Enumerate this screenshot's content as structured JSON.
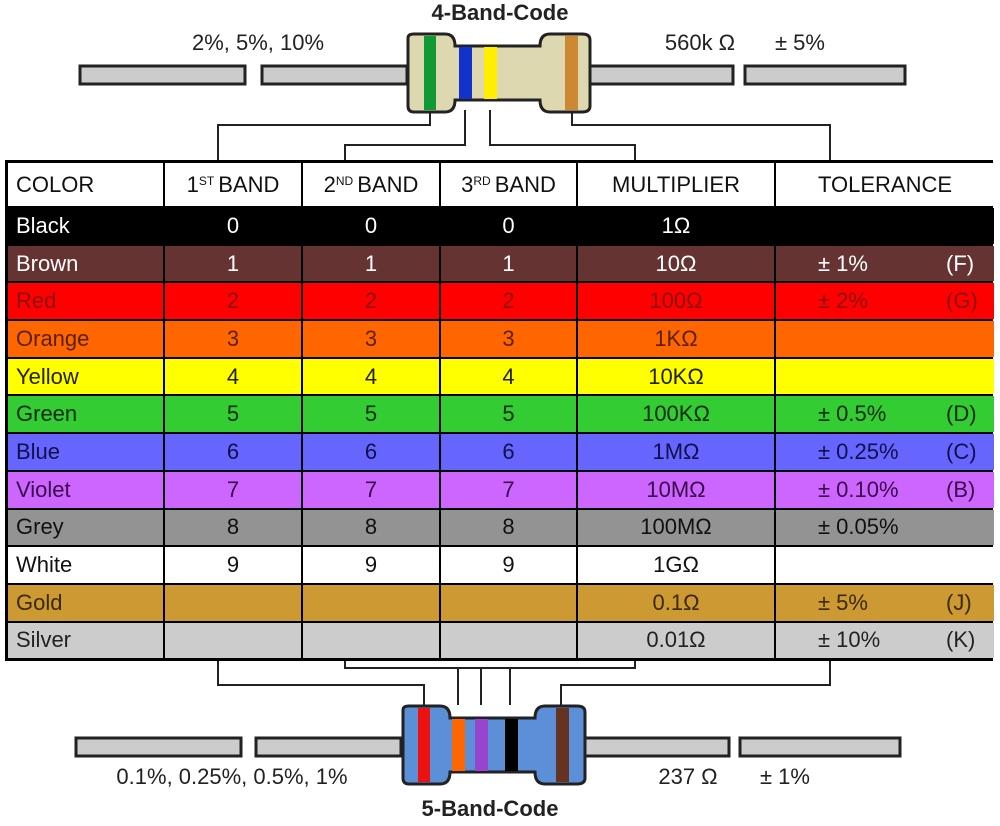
{
  "top": {
    "title": "4-Band-Code",
    "tolerance_range": "2%, 5%, 10%",
    "value": "560k Ω",
    "tolerance": "± 5%"
  },
  "bottom": {
    "title": "5-Band-Code",
    "tolerance_range": "0.1%, 0.25%, 0.5%, 1%",
    "value": "237 Ω",
    "tolerance": "± 1%"
  },
  "table": {
    "headers": [
      {
        "text": "COLOR"
      },
      {
        "text": "1",
        "sup": "ST",
        "rest": "BAND"
      },
      {
        "text": "2",
        "sup": "ND",
        "rest": "BAND"
      },
      {
        "text": "3",
        "sup": "RD",
        "rest": "BAND"
      },
      {
        "text": "MULTIPLIER"
      },
      {
        "text": "TOLERANCE"
      }
    ],
    "rows": [
      {
        "color": "Black",
        "band1": "0",
        "band2": "0",
        "band3": "0",
        "multiplier": "1Ω",
        "tolerance": null,
        "code": null,
        "bg": "#000000",
        "fg": "#ffffff"
      },
      {
        "color": "Brown",
        "band1": "1",
        "band2": "1",
        "band3": "1",
        "multiplier": "10Ω",
        "tolerance": "± 1%",
        "code": "(F)",
        "bg": "#663333",
        "fg": "#ffffff"
      },
      {
        "color": "Red",
        "band1": "2",
        "band2": "2",
        "band3": "2",
        "multiplier": "100Ω",
        "tolerance": "± 2%",
        "code": "(G)",
        "bg": "#ff0000",
        "fg": "#8a1010"
      },
      {
        "color": "Orange",
        "band1": "3",
        "band2": "3",
        "band3": "3",
        "multiplier": "1KΩ",
        "tolerance": null,
        "code": null,
        "bg": "#ff6600",
        "fg": "#5a2000"
      },
      {
        "color": "Yellow",
        "band1": "4",
        "band2": "4",
        "band3": "4",
        "multiplier": "10KΩ",
        "tolerance": null,
        "code": null,
        "bg": "#ffff00",
        "fg": "#222200"
      },
      {
        "color": "Green",
        "band1": "5",
        "band2": "5",
        "band3": "5",
        "multiplier": "100KΩ",
        "tolerance": "± 0.5%",
        "code": "(D)",
        "bg": "#33cc33",
        "fg": "#0a2a0a"
      },
      {
        "color": "Blue",
        "band1": "6",
        "band2": "6",
        "band3": "6",
        "multiplier": "1MΩ",
        "tolerance": "± 0.25%",
        "code": "(C)",
        "bg": "#6666ff",
        "fg": "#10104a"
      },
      {
        "color": "Violet",
        "band1": "7",
        "band2": "7",
        "band3": "7",
        "multiplier": "10MΩ",
        "tolerance": "± 0.10%",
        "code": "(B)",
        "bg": "#cc66ff",
        "fg": "#3a0a4a"
      },
      {
        "color": "Grey",
        "band1": "8",
        "band2": "8",
        "band3": "8",
        "multiplier": "100MΩ",
        "tolerance": "± 0.05%",
        "code": null,
        "bg": "#939393",
        "fg": "#111111"
      },
      {
        "color": "White",
        "band1": "9",
        "band2": "9",
        "band3": "9",
        "multiplier": "1GΩ",
        "tolerance": null,
        "code": null,
        "bg": "#ffffff",
        "fg": "#111111"
      },
      {
        "color": "Gold",
        "band1": null,
        "band2": null,
        "band3": null,
        "multiplier": "0.1Ω",
        "tolerance": "± 5%",
        "code": "(J)",
        "bg": "#cc9933",
        "fg": "#3a2a00"
      },
      {
        "color": "Silver",
        "band1": null,
        "band2": null,
        "band3": null,
        "multiplier": "0.01Ω",
        "tolerance": "± 10%",
        "code": "(K)",
        "bg": "#cccccc",
        "fg": "#222222"
      }
    ]
  }
}
